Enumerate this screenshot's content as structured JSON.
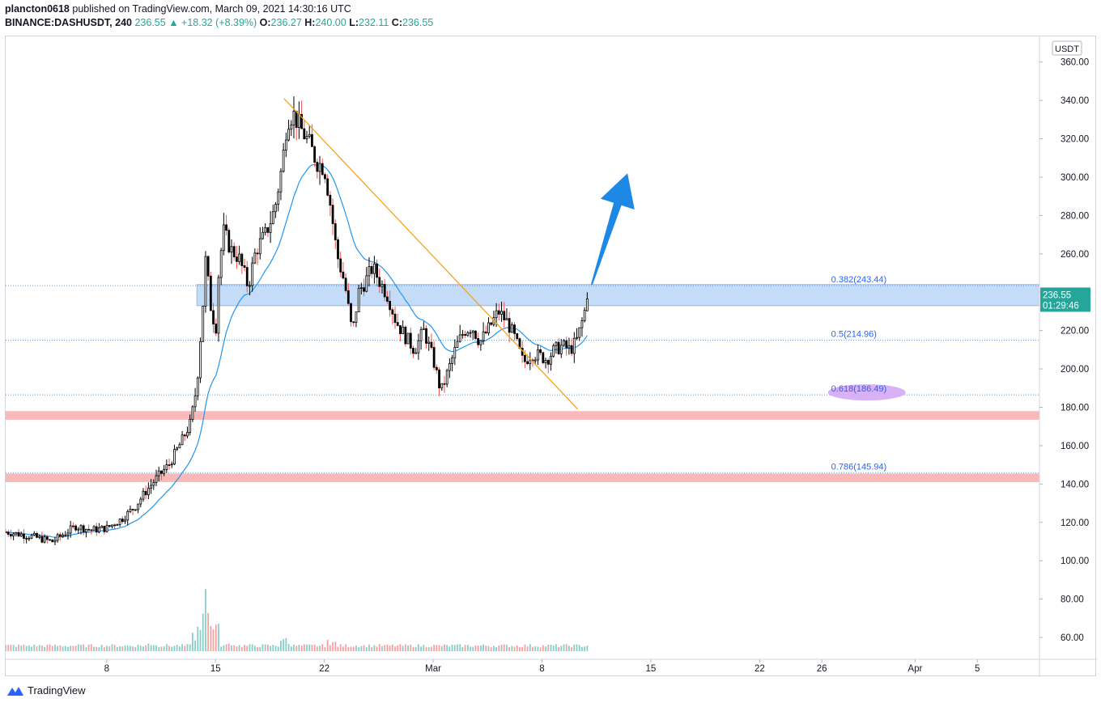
{
  "header": {
    "line1_user": "plancton0618",
    "line1_rest": " published on TradingView.com, March 09, 2021 14:30:16 UTC",
    "symbol": "BINANCE:DASHUSDT, 240",
    "last": "236.55",
    "change": "+18.32 (+8.39%)",
    "o_label": "O:",
    "o_value": "236.27",
    "h_label": "H:",
    "h_value": "240.00",
    "l_label": "L:",
    "l_value": "232.11",
    "c_label": "C:",
    "c_value": "236.55"
  },
  "currency_badge": "USDT",
  "price_tag": {
    "price": "236.55",
    "countdown": "01:29:46"
  },
  "footer": {
    "brand": "TradingView"
  },
  "colors": {
    "up": "#26a69a",
    "down": "#ef5350",
    "candle_body": "#000000",
    "ema": "#2196f3",
    "trendline": "#f7a21b",
    "zone_blue": "#bbd6f7",
    "zone_red": "#f8a8a8",
    "fib_line": "#5b9bd5",
    "fib_text": "#2962ff",
    "highlight": "#d5a8f5",
    "arrow": "#1e88e5",
    "tag": "#26a69a"
  },
  "chart_data": {
    "type": "candlestick",
    "y_axis": {
      "ylim": [
        52,
        370
      ],
      "ticks": [
        60,
        80,
        100,
        120,
        140,
        160,
        180,
        200,
        220,
        240,
        260,
        280,
        300,
        320,
        340,
        360,
        380
      ]
    },
    "x_axis": {
      "xlim": [
        -6.5,
        60
      ],
      "ticks": [
        {
          "label": "8",
          "x": 0
        },
        {
          "label": "15",
          "x": 7
        },
        {
          "label": "22",
          "x": 14
        },
        {
          "label": "Mar",
          "x": 21
        },
        {
          "label": "8",
          "x": 28
        },
        {
          "label": "15",
          "x": 35
        },
        {
          "label": "22",
          "x": 42
        },
        {
          "label": "26",
          "x": 46
        },
        {
          "label": "Apr",
          "x": 52
        },
        {
          "label": "5",
          "x": 56
        }
      ]
    },
    "anchors": [
      [
        -6.5,
        115
      ],
      [
        -5,
        113
      ],
      [
        -3.5,
        110
      ],
      [
        -2,
        118
      ],
      [
        -1,
        116
      ],
      [
        0,
        117
      ],
      [
        1,
        122
      ],
      [
        1.8,
        128
      ],
      [
        2.5,
        136
      ],
      [
        3.2,
        143
      ],
      [
        4,
        150
      ],
      [
        4.8,
        162
      ],
      [
        5.4,
        172
      ],
      [
        5.8,
        192
      ],
      [
        6.2,
        235
      ],
      [
        6.4,
        262
      ],
      [
        6.6,
        235
      ],
      [
        6.8,
        230
      ],
      [
        7,
        218
      ],
      [
        7.2,
        250
      ],
      [
        7.5,
        272
      ],
      [
        8,
        262
      ],
      [
        8.5,
        258
      ],
      [
        9.1,
        243
      ],
      [
        9.6,
        262
      ],
      [
        10.2,
        270
      ],
      [
        10.8,
        283
      ],
      [
        11.3,
        307
      ],
      [
        11.6,
        330
      ],
      [
        12.0,
        333
      ],
      [
        12.5,
        325
      ],
      [
        13.0,
        318
      ],
      [
        13.5,
        308
      ],
      [
        14.0,
        305
      ],
      [
        14.4,
        285
      ],
      [
        14.8,
        260
      ],
      [
        15.3,
        245
      ],
      [
        15.8,
        218
      ],
      [
        16.2,
        240
      ],
      [
        16.8,
        248
      ],
      [
        17.1,
        253
      ],
      [
        17.6,
        245
      ],
      [
        18.1,
        238
      ],
      [
        18.6,
        225
      ],
      [
        19.2,
        217
      ],
      [
        19.8,
        210
      ],
      [
        20.4,
        220
      ],
      [
        21.0,
        205
      ],
      [
        21.5,
        188
      ],
      [
        22.0,
        200
      ],
      [
        22.5,
        212
      ],
      [
        23.0,
        220
      ],
      [
        23.5,
        222
      ],
      [
        24.0,
        214
      ],
      [
        24.5,
        220
      ],
      [
        25.2,
        230
      ],
      [
        25.8,
        224
      ],
      [
        26.3,
        215
      ],
      [
        26.8,
        203
      ],
      [
        27.3,
        208
      ],
      [
        27.8,
        207
      ],
      [
        28.3,
        205
      ],
      [
        28.8,
        210
      ],
      [
        29.3,
        212
      ],
      [
        29.8,
        210
      ],
      [
        30.2,
        214
      ],
      [
        30.5,
        222
      ],
      [
        30.8,
        232
      ],
      [
        31.0,
        236.55
      ]
    ],
    "candle_start": -6.5,
    "candle_end": 31.0,
    "candle_step": 0.167,
    "volume": {
      "ylim": [
        0,
        140
      ],
      "baseline": [
        -6.5,
        6
      ],
      "bumps": [
        [
          3.0,
          12
        ],
        [
          5.8,
          26
        ],
        [
          6.2,
          34
        ],
        [
          6.4,
          48
        ],
        [
          7.0,
          44
        ],
        [
          8.0,
          10
        ],
        [
          11.5,
          18
        ],
        [
          14.5,
          14
        ]
      ]
    },
    "ema_period": 20,
    "trendline": {
      "from": [
        11.4,
        341
      ],
      "to": [
        30.3,
        179
      ]
    },
    "arrow": {
      "from": [
        31.2,
        244
      ],
      "to": [
        33.5,
        302
      ]
    },
    "zones": [
      {
        "kind": "blue",
        "x_from": 5.8,
        "y_from": 233,
        "y_to": 244
      },
      {
        "kind": "red",
        "x_from": -6.5,
        "y_from": 173.5,
        "y_to": 178
      },
      {
        "kind": "red",
        "x_from": -6.5,
        "y_from": 141,
        "y_to": 145.5
      }
    ],
    "fib_levels": [
      {
        "ratio": "0.382",
        "price": 243.44,
        "label": "0.382(243.44)"
      },
      {
        "ratio": "0.5",
        "price": 214.96,
        "label": "0.5(214.96)"
      },
      {
        "ratio": "0.618",
        "price": 186.49,
        "label": "0.618(186.49)"
      },
      {
        "ratio": "0.786",
        "price": 145.94,
        "label": "0.786(145.94)"
      }
    ],
    "fib_label_x": 46.6,
    "highlighted_fib": "0.618"
  }
}
